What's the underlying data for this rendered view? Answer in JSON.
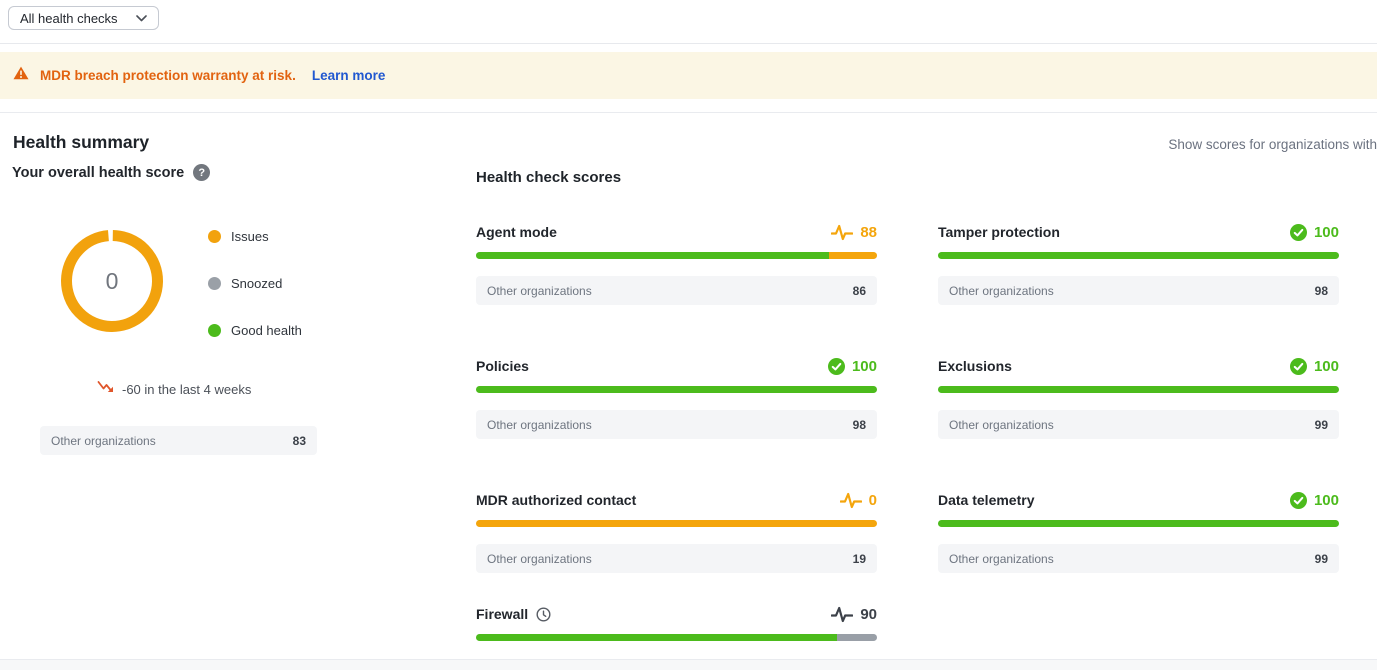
{
  "filter_dropdown": {
    "value": "All health checks"
  },
  "banner": {
    "message": "MDR breach protection warranty at risk.",
    "link_label": "Learn more",
    "text_color": "#e26310",
    "link_color": "#2158d0",
    "background": "#fbf6e4"
  },
  "icons": {
    "help_glyph": "?"
  },
  "health_summary": {
    "title": "Health summary",
    "overall_label": "Your overall health score",
    "donut_value": "0",
    "donut_color": "#f2a20d",
    "legend": [
      {
        "label": "Issues",
        "color": "#f2a20d"
      },
      {
        "label": "Snoozed",
        "color": "#9aa0a7"
      },
      {
        "label": "Good health",
        "color": "#4cbb1c"
      }
    ],
    "trend_text": "-60 in the last 4 weeks",
    "other_organizations": {
      "label": "Other organizations",
      "value": "83"
    }
  },
  "health_checks": {
    "title": "Health check scores",
    "filter_note": "Show scores for organizations with",
    "other_label": "Other organizations",
    "status_colors": {
      "good": "#4cbb1c",
      "warning": "#f4a50c",
      "snoozed": "#3c4149"
    },
    "cards": [
      {
        "name": "Agent mode",
        "score": "88",
        "status": "warning",
        "snoozed": false,
        "segments": [
          {
            "color": "#4cbb1c",
            "pct": 88
          },
          {
            "color": "#f4a50c",
            "pct": 12
          }
        ],
        "other_value": "86"
      },
      {
        "name": "Tamper protection",
        "score": "100",
        "status": "good",
        "snoozed": false,
        "segments": [
          {
            "color": "#4cbb1c",
            "pct": 100
          }
        ],
        "other_value": "98"
      },
      {
        "name": "Policies",
        "score": "100",
        "status": "good",
        "snoozed": false,
        "segments": [
          {
            "color": "#4cbb1c",
            "pct": 100
          }
        ],
        "other_value": "98"
      },
      {
        "name": "Exclusions",
        "score": "100",
        "status": "good",
        "snoozed": false,
        "segments": [
          {
            "color": "#4cbb1c",
            "pct": 100
          }
        ],
        "other_value": "99"
      },
      {
        "name": "MDR authorized contact",
        "score": "0",
        "status": "warning",
        "snoozed": false,
        "segments": [
          {
            "color": "#f4a50c",
            "pct": 100
          }
        ],
        "other_value": "19"
      },
      {
        "name": "Data telemetry",
        "score": "100",
        "status": "good",
        "snoozed": false,
        "segments": [
          {
            "color": "#4cbb1c",
            "pct": 100
          }
        ],
        "other_value": "99"
      },
      {
        "name": "Firewall",
        "score": "90",
        "status": "snoozed",
        "snoozed": true,
        "segments": [
          {
            "color": "#4cbb1c",
            "pct": 90
          },
          {
            "color": "#999fa7",
            "pct": 10
          }
        ],
        "other_value": null
      }
    ]
  }
}
